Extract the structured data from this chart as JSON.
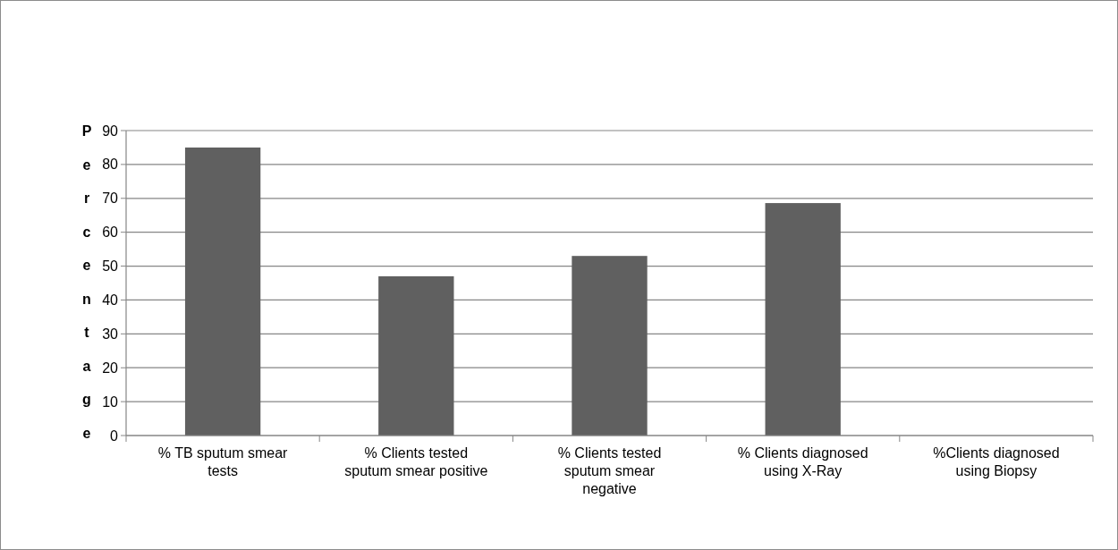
{
  "chart_data": {
    "type": "bar",
    "ylabel": "Percentage",
    "categories": [
      "% TB sputum smear tests",
      "% Clients tested sputum smear positive",
      "% Clients tested sputum smear negative",
      "% Clients diagnosed using X-Ray",
      "%Clients diagnosed using Biopsy"
    ],
    "values": [
      85,
      47,
      53,
      68.6,
      0
    ],
    "color": "#606060",
    "ylim": [
      0,
      90
    ],
    "yticks": [
      0,
      10,
      20,
      30,
      40,
      50,
      60,
      70,
      80,
      90
    ],
    "grid": "y"
  }
}
